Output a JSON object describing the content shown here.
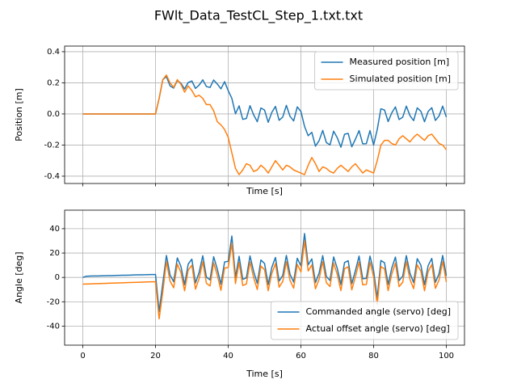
{
  "title": "FWlt_Data_TestCL_Step_1.txt.txt",
  "chart_data": [
    {
      "type": "line",
      "x_label": "Time [s]",
      "y_label": "Position [m]",
      "xlim": [
        -5,
        105
      ],
      "ylim": [
        -0.447,
        0.436
      ],
      "xticks": [
        0,
        20,
        40,
        60,
        80,
        100
      ],
      "xtick_labels": false,
      "yticks": [
        -0.4,
        -0.2,
        {
          "value": 0,
          "label": "0.0"
        },
        0.2,
        0.4
      ],
      "grid": true,
      "legend": "upper right",
      "x": [
        0,
        1,
        2,
        3,
        4,
        5,
        6,
        7,
        8,
        9,
        10,
        11,
        12,
        13,
        14,
        15,
        16,
        17,
        18,
        19,
        20,
        21,
        22,
        23,
        24,
        25,
        26,
        27,
        28,
        29,
        30,
        31,
        32,
        33,
        34,
        35,
        36,
        37,
        38,
        39,
        40,
        41,
        42,
        43,
        44,
        45,
        46,
        47,
        48,
        49,
        50,
        51,
        52,
        53,
        54,
        55,
        56,
        57,
        58,
        59,
        60,
        61,
        62,
        63,
        64,
        65,
        66,
        67,
        68,
        69,
        70,
        71,
        72,
        73,
        74,
        75,
        76,
        77,
        78,
        79,
        80,
        81,
        82,
        83,
        84,
        85,
        86,
        87,
        88,
        89,
        90,
        91,
        92,
        93,
        94,
        95,
        96,
        97,
        98,
        99,
        100
      ],
      "series": [
        {
          "name": "Measured position [m]",
          "color": "#1f77b4",
          "values": [
            0,
            0,
            0,
            0,
            0,
            0,
            0,
            0,
            0,
            0,
            0,
            0,
            0,
            0,
            0,
            0,
            0,
            0,
            0,
            0,
            0,
            0.1,
            0.22,
            0.24,
            0.18,
            0.166,
            0.215,
            0.197,
            0.16,
            0.202,
            0.212,
            0.164,
            0.185,
            0.219,
            0.176,
            0.17,
            0.218,
            0.192,
            0.161,
            0.207,
            0.15,
            0.1,
            0.001,
            0.052,
            -0.035,
            -0.029,
            0.053,
            -0.006,
            -0.05,
            0.038,
            0.025,
            -0.054,
            0.01,
            0.048,
            -0.041,
            -0.02,
            0.055,
            -0.015,
            -0.045,
            0.045,
            0.016,
            -0.08,
            -0.14,
            -0.118,
            -0.207,
            -0.172,
            -0.106,
            -0.184,
            -0.199,
            -0.111,
            -0.153,
            -0.214,
            -0.131,
            -0.125,
            -0.211,
            -0.162,
            -0.107,
            -0.192,
            -0.191,
            -0.107,
            -0.2,
            -0.1,
            0.033,
            0.025,
            -0.049,
            0.007,
            0.045,
            -0.036,
            -0.021,
            0.05,
            -0.011,
            -0.043,
            0.039,
            0.017,
            -0.05,
            0.016,
            0.04,
            -0.042,
            -0.013,
            0.05,
            -0.02
          ]
        },
        {
          "name": "Simulated position [m]",
          "color": "#ff7f0e",
          "values": [
            0,
            0,
            0,
            0,
            0,
            0,
            0,
            0,
            0,
            0,
            0,
            0,
            0,
            0,
            0,
            0,
            0,
            0,
            0,
            0,
            0,
            0.1,
            0.22,
            0.25,
            0.2,
            0.17,
            0.22,
            0.19,
            0.14,
            0.18,
            0.15,
            0.11,
            0.12,
            0.1,
            0.06,
            0.06,
            0.02,
            -0.05,
            -0.07,
            -0.1,
            -0.15,
            -0.25,
            -0.35,
            -0.39,
            -0.36,
            -0.32,
            -0.33,
            -0.37,
            -0.36,
            -0.33,
            -0.35,
            -0.38,
            -0.34,
            -0.3,
            -0.33,
            -0.36,
            -0.33,
            -0.34,
            -0.36,
            -0.37,
            -0.38,
            -0.39,
            -0.33,
            -0.28,
            -0.32,
            -0.37,
            -0.34,
            -0.35,
            -0.37,
            -0.38,
            -0.35,
            -0.33,
            -0.35,
            -0.37,
            -0.34,
            -0.32,
            -0.35,
            -0.38,
            -0.36,
            -0.37,
            -0.38,
            -0.3,
            -0.2,
            -0.17,
            -0.17,
            -0.19,
            -0.2,
            -0.16,
            -0.14,
            -0.16,
            -0.18,
            -0.15,
            -0.13,
            -0.15,
            -0.17,
            -0.14,
            -0.13,
            -0.16,
            -0.19,
            -0.2,
            -0.23
          ]
        }
      ]
    },
    {
      "type": "line",
      "x_label": "Time [s]",
      "y_label": "Angle [deg]",
      "xlim": [
        -5,
        105
      ],
      "ylim": [
        -55.6,
        55.2
      ],
      "xticks": [
        0,
        20,
        40,
        60,
        80,
        100
      ],
      "xtick_labels": true,
      "yticks": [
        -40,
        -20,
        0,
        20,
        40
      ],
      "grid": true,
      "legend": "lower right",
      "x": [
        0,
        1,
        2,
        3,
        4,
        5,
        6,
        7,
        8,
        9,
        10,
        11,
        12,
        13,
        14,
        15,
        16,
        17,
        18,
        19,
        20,
        21,
        22,
        23,
        24,
        25,
        26,
        27,
        28,
        29,
        30,
        31,
        32,
        33,
        34,
        35,
        36,
        37,
        38,
        39,
        40,
        41,
        42,
        43,
        44,
        45,
        46,
        47,
        48,
        49,
        50,
        51,
        52,
        53,
        54,
        55,
        56,
        57,
        58,
        59,
        60,
        61,
        62,
        63,
        64,
        65,
        66,
        67,
        68,
        69,
        70,
        71,
        72,
        73,
        74,
        75,
        76,
        77,
        78,
        79,
        80,
        81,
        82,
        83,
        84,
        85,
        86,
        87,
        88,
        89,
        90,
        91,
        92,
        93,
        94,
        95,
        96,
        97,
        98,
        99,
        100
      ],
      "series": [
        {
          "name": "Commanded angle (servo) [deg]",
          "color": "#1f77b4",
          "values": [
            0,
            1,
            1.1,
            1.2,
            1.2,
            1.3,
            1.4,
            1.5,
            1.5,
            1.6,
            1.7,
            1.8,
            1.8,
            1.9,
            2,
            2.1,
            2.1,
            2.2,
            2.3,
            2.4,
            2.4,
            -28,
            -5,
            18,
            2,
            -3.5,
            16,
            9,
            -6,
            11,
            15,
            -4.6,
            4.1,
            17.8,
            0.2,
            -2,
            17,
            6.8,
            -5.6,
            12.7,
            13.2,
            34,
            0,
            17.3,
            -1.6,
            -0.4,
            17.6,
            4.8,
            -4.9,
            14.3,
            11.4,
            -5.9,
            8.3,
            16.4,
            -3,
            1.6,
            18,
            2.6,
            -3.8,
            15.7,
            9.5,
            36,
            10.3,
            15.2,
            -4.3,
            3.5,
            17.9,
            0.7,
            -2.5,
            16.8,
            7.4,
            -5.8,
            12.2,
            13.7,
            -5.2,
            5.6,
            17.5,
            -1.1,
            -0.8,
            17.5,
            5.4,
            -17,
            13.9,
            12,
            -5.8,
            7.7,
            16.7,
            -2.6,
            1,
            17.9,
            3.4,
            -4.2,
            15.4,
            10.1,
            -6,
            9.7,
            15.6,
            -4,
            2.9,
            18,
            1.3
          ]
        },
        {
          "name": "Actual offset angle (servo) [deg]",
          "color": "#ff7f0e",
          "values": [
            -5.5,
            -5.4,
            -5.3,
            -5.2,
            -5.1,
            -5,
            -4.9,
            -4.8,
            -4.7,
            -4.6,
            -4.5,
            -4.4,
            -4.3,
            -4.2,
            -4.1,
            -4,
            -3.9,
            -3.8,
            -3.7,
            -3.6,
            -3.5,
            -34,
            -12,
            13,
            -3,
            -8.5,
            11,
            4,
            -11,
            6,
            10,
            -9.6,
            -0.9,
            12.8,
            -4.8,
            -7,
            12,
            1.8,
            -10.6,
            7.7,
            8.2,
            28,
            -5,
            12.3,
            -6.6,
            -5.4,
            12.6,
            -0.2,
            -9.9,
            9.3,
            6.4,
            -10.9,
            3.3,
            11.4,
            -8,
            -3.4,
            13,
            -2.4,
            -8.8,
            10.7,
            4.5,
            30,
            5.3,
            10.2,
            -9.3,
            -1.5,
            12.9,
            -4.3,
            -7.5,
            11.8,
            2.4,
            -10.8,
            7.2,
            8.7,
            -10.2,
            0.6,
            12.5,
            -6.1,
            -5.8,
            12.5,
            0.4,
            -22,
            8.9,
            7,
            -10.8,
            2.7,
            11.7,
            -7.6,
            -4,
            12.9,
            -1.6,
            -9.2,
            10.4,
            5.1,
            -11,
            4.7,
            10.6,
            -9,
            -2.1,
            13,
            -3.7
          ]
        }
      ]
    }
  ]
}
